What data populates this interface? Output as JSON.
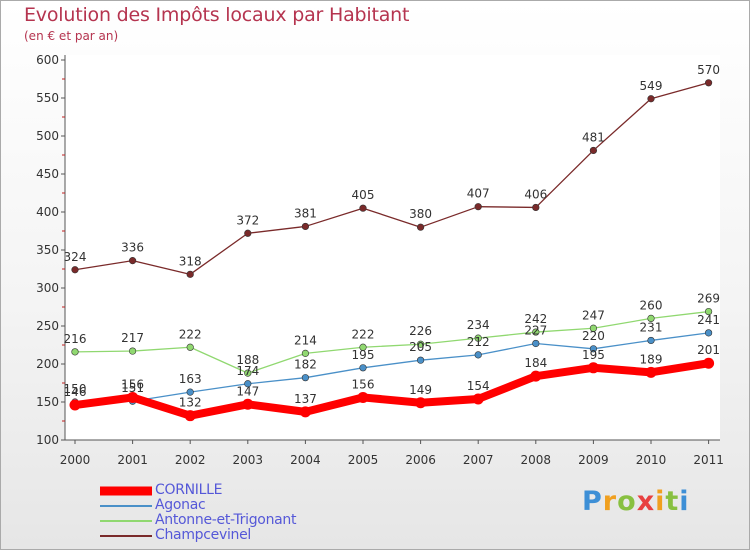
{
  "chart_data": {
    "type": "line",
    "title": "Evolution des Impôts locaux par Habitant",
    "subtitle": "(en € et par an)",
    "x": [
      "2000",
      "2001",
      "2002",
      "2003",
      "2004",
      "2005",
      "2006",
      "2007",
      "2008",
      "2009",
      "2010",
      "2011"
    ],
    "ylim": [
      100,
      600
    ],
    "yticks": [
      100,
      150,
      200,
      250,
      300,
      350,
      400,
      450,
      500,
      550,
      600
    ],
    "grid": false,
    "legend_position": "bottom-left",
    "series": [
      {
        "name": "CORNILLE",
        "color": "#ff0000",
        "values": [
          146,
          156,
          132,
          147,
          137,
          156,
          149,
          154,
          184,
          195,
          189,
          201
        ]
      },
      {
        "name": "Agonac",
        "color": "#4a90c8",
        "values": [
          150,
          151,
          163,
          174,
          182,
          195,
          205,
          212,
          227,
          220,
          231,
          241
        ]
      },
      {
        "name": "Antonne-et-Trigonant",
        "color": "#90d870",
        "values": [
          216,
          217,
          222,
          188,
          214,
          222,
          226,
          234,
          242,
          247,
          260,
          269
        ]
      },
      {
        "name": "Champcevinel",
        "color": "#7a2a2a",
        "values": [
          324,
          336,
          318,
          372,
          381,
          405,
          380,
          407,
          406,
          481,
          549,
          570
        ]
      }
    ]
  },
  "brand": {
    "letters": [
      "P",
      "r",
      "o",
      "x",
      "i",
      "t",
      "i"
    ],
    "colors": [
      "#3d8fd6",
      "#f0a020",
      "#88c040",
      "#e84040",
      "#f0a020",
      "#88c040",
      "#3d8fd6"
    ]
  }
}
